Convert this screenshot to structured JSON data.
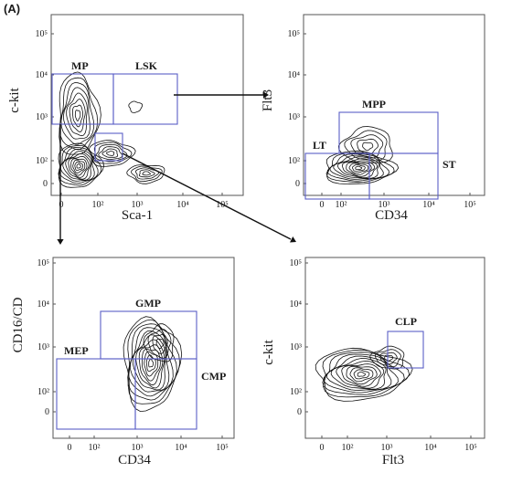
{
  "figure_label": "(A)",
  "panels": [
    {
      "id": "p1",
      "x_label": "Sca-1",
      "y_label": "c-kit",
      "x_ticks": [
        "0",
        "10²",
        "10³",
        "10⁴",
        "10⁵"
      ],
      "y_ticks": [
        "10⁵",
        "10⁴",
        "10³",
        "10²",
        "0"
      ],
      "gates": [
        {
          "label": "MP"
        },
        {
          "label": "LSK"
        },
        {
          "label": ""
        }
      ]
    },
    {
      "id": "p2",
      "x_label": "CD34",
      "y_label": "Flt3",
      "x_ticks": [
        "0",
        "10²",
        "10³",
        "10⁴",
        "10⁵"
      ],
      "y_ticks": [
        "10⁵",
        "10⁴",
        "10³",
        "10²",
        "0"
      ],
      "gates": [
        {
          "label": "MPP"
        },
        {
          "label": "LT"
        },
        {
          "label": "ST"
        }
      ]
    },
    {
      "id": "p3",
      "x_label": "CD34",
      "y_label": "CD16/CD",
      "x_ticks": [
        "0",
        "10²",
        "10³",
        "10⁴",
        "10⁵"
      ],
      "y_ticks": [
        "10⁵",
        "10⁴",
        "10³",
        "10²",
        "0"
      ],
      "gates": [
        {
          "label": "GMP"
        },
        {
          "label": "MEP"
        },
        {
          "label": "CMP"
        }
      ]
    },
    {
      "id": "p4",
      "x_label": "Flt3",
      "y_label": "c-kit",
      "x_ticks": [
        "0",
        "10²",
        "10³",
        "10⁴",
        "10⁵"
      ],
      "y_ticks": [
        "10⁵",
        "10⁴",
        "10³",
        "10²",
        "0"
      ],
      "gates": [
        {
          "label": "CLP"
        }
      ]
    }
  ],
  "colors": {
    "gate": "#5b5fc7",
    "contour": "#111111",
    "frame": "#555555"
  }
}
